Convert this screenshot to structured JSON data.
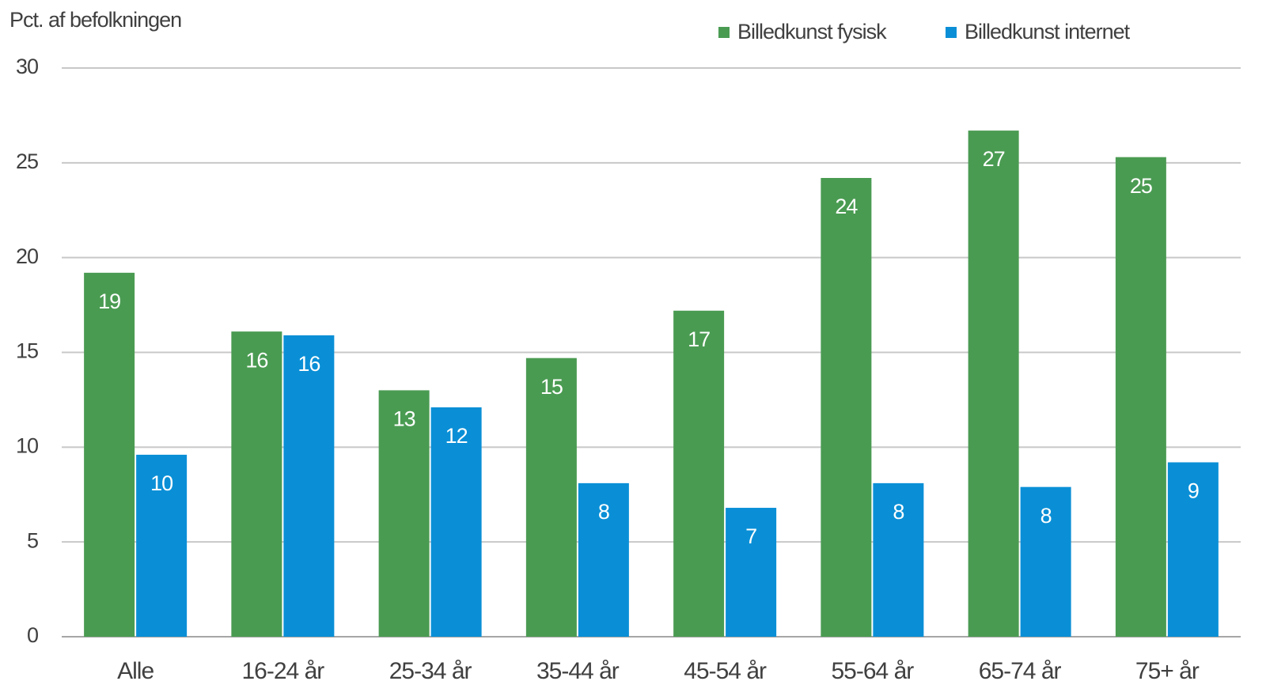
{
  "chart_data": {
    "type": "bar",
    "y_axis_label": "Pct. af befolkningen",
    "categories": [
      "Alle",
      "16-24 år",
      "25-34 år",
      "35-44 år",
      "45-54 år",
      "55-64 år",
      "65-74 år",
      "75+ år"
    ],
    "series": [
      {
        "name": "Billedkunst fysisk",
        "color": "#4a9b52",
        "values": [
          19.2,
          16.1,
          13,
          14.7,
          17.2,
          24.2,
          26.7,
          25.3
        ],
        "value_labels": [
          19,
          16,
          13,
          15,
          17,
          24,
          27,
          25
        ]
      },
      {
        "name": "Billedkunst internet",
        "color": "#0a8fd6",
        "values": [
          9.6,
          15.9,
          12.1,
          8.1,
          6.8,
          8.1,
          7.9,
          9.2
        ],
        "value_labels": [
          10,
          16,
          12,
          8,
          7,
          8,
          8,
          9
        ]
      }
    ],
    "ylim": [
      0,
      30
    ],
    "yticks": [
      0,
      5,
      10,
      15,
      20,
      25,
      30
    ],
    "grid": true
  }
}
